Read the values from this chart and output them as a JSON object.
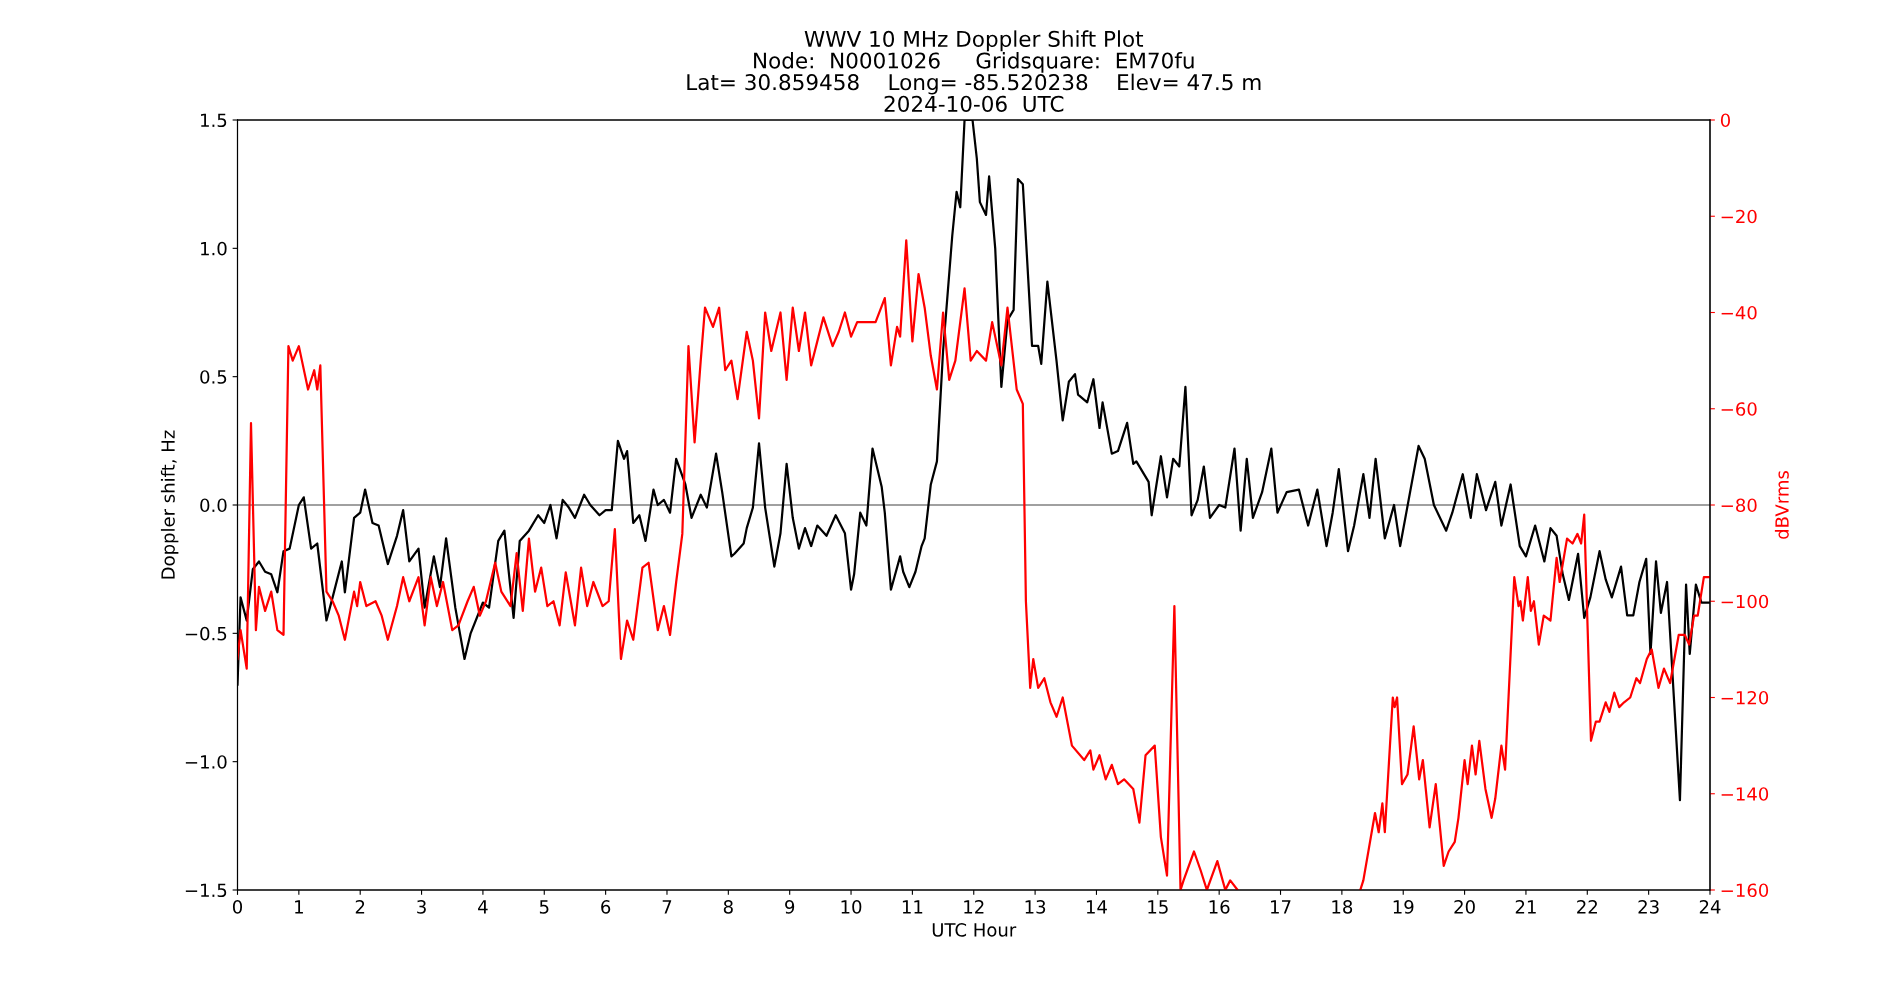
{
  "chart_data": {
    "type": "line",
    "title": "WWV 10 MHz Doppler Shift Plot\nNode:  N0001026     Gridsquare:  EM70fu\nLat= 30.859458    Long= -85.520238    Elev= 47.5 m\n2024-10-06  UTC",
    "xlabel": "UTC Hour",
    "ylabel": "Doppler shift, Hz",
    "y2label": "dBVrms",
    "xlim": [
      0,
      24
    ],
    "xticks": [
      0,
      1,
      2,
      3,
      4,
      5,
      6,
      7,
      8,
      9,
      10,
      11,
      12,
      13,
      14,
      15,
      16,
      17,
      18,
      19,
      20,
      21,
      22,
      23,
      24
    ],
    "ylim": [
      -1.5,
      1.5
    ],
    "yticks": [
      {
        "value": -1.5,
        "label": "−1.5"
      },
      {
        "value": -1.0,
        "label": "−1.0"
      },
      {
        "value": -0.5,
        "label": "−0.5"
      },
      {
        "value": 0,
        "label": "0.0"
      },
      {
        "value": 0.5,
        "label": "0.5"
      },
      {
        "value": 1.0,
        "label": "1.0"
      },
      {
        "value": 1.5,
        "label": "1.5"
      }
    ],
    "y2lim": [
      -160,
      0
    ],
    "y2ticks": [
      {
        "value": -160,
        "label": "−160"
      },
      {
        "value": -140,
        "label": "−140"
      },
      {
        "value": -120,
        "label": "−120"
      },
      {
        "value": -100,
        "label": "−100"
      },
      {
        "value": -80,
        "label": "−80"
      },
      {
        "value": -60,
        "label": "−60"
      },
      {
        "value": -40,
        "label": "−40"
      },
      {
        "value": -20,
        "label": "−20"
      },
      0
    ],
    "grid": false,
    "legend": false,
    "ref_lines": [
      {
        "axis": "y",
        "value": 0,
        "color": "#808080"
      }
    ],
    "series": [
      {
        "color": "#000000",
        "axis": "y",
        "x": [
          0.0,
          0.05,
          0.15,
          0.25,
          0.35,
          0.45,
          0.55,
          0.65,
          0.75,
          0.85,
          1.0,
          1.08,
          1.2,
          1.3,
          1.45,
          1.55,
          1.7,
          1.75,
          1.9,
          2.0,
          2.08,
          2.2,
          2.3,
          2.45,
          2.6,
          2.7,
          2.8,
          2.95,
          3.05,
          3.2,
          3.3,
          3.4,
          3.55,
          3.7,
          3.8,
          4.0,
          4.1,
          4.25,
          4.35,
          4.5,
          4.6,
          4.75,
          4.9,
          5.0,
          5.1,
          5.2,
          5.3,
          5.4,
          5.5,
          5.65,
          5.75,
          5.9,
          6.0,
          6.1,
          6.2,
          6.3,
          6.35,
          6.45,
          6.55,
          6.65,
          6.78,
          6.85,
          6.95,
          7.05,
          7.15,
          7.3,
          7.4,
          7.55,
          7.65,
          7.8,
          7.9,
          8.05,
          8.1,
          8.25,
          8.3,
          8.4,
          8.5,
          8.6,
          8.75,
          8.85,
          8.95,
          9.05,
          9.15,
          9.25,
          9.35,
          9.45,
          9.6,
          9.75,
          9.9,
          10.0,
          10.05,
          10.15,
          10.25,
          10.35,
          10.5,
          10.55,
          10.65,
          10.8,
          10.85,
          10.95,
          11.05,
          11.15,
          11.2,
          11.3,
          11.4,
          11.5,
          11.65,
          11.72,
          11.78,
          11.85,
          11.98,
          12.05,
          12.1,
          12.2,
          12.25,
          12.35,
          12.45,
          12.55,
          12.65,
          12.72,
          12.8,
          12.95,
          13.05,
          13.1,
          13.2,
          13.35,
          13.45,
          13.55,
          13.65,
          13.7,
          13.85,
          13.95,
          14.05,
          14.1,
          14.25,
          14.35,
          14.5,
          14.6,
          14.65,
          14.85,
          14.9,
          15.05,
          15.15,
          15.25,
          15.35,
          15.45,
          15.55,
          15.65,
          15.75,
          15.85,
          16.0,
          16.1,
          16.25,
          16.35,
          16.45,
          16.55,
          16.7,
          16.85,
          16.95,
          17.1,
          17.3,
          17.45,
          17.6,
          17.75,
          17.85,
          17.95,
          18.1,
          18.2,
          18.35,
          18.45,
          18.55,
          18.7,
          18.85,
          18.95,
          19.25,
          19.35,
          19.5,
          19.7,
          19.8,
          19.97,
          20.1,
          20.2,
          20.35,
          20.5,
          20.6,
          20.75,
          20.9,
          21.0,
          21.15,
          21.3,
          21.4,
          21.5,
          21.6,
          21.7,
          21.85,
          21.95,
          22.05,
          22.2,
          22.3,
          22.4,
          22.55,
          22.65,
          22.75,
          22.85,
          22.96,
          23.03,
          23.12,
          23.2,
          23.3,
          23.51,
          23.61,
          23.67,
          23.77,
          23.86,
          24.0
        ],
        "values": [
          -0.7,
          -0.36,
          -0.45,
          -0.25,
          -0.22,
          -0.26,
          -0.27,
          -0.34,
          -0.18,
          -0.17,
          0.0,
          0.03,
          -0.17,
          -0.15,
          -0.45,
          -0.36,
          -0.22,
          -0.34,
          -0.05,
          -0.03,
          0.06,
          -0.07,
          -0.08,
          -0.23,
          -0.12,
          -0.02,
          -0.22,
          -0.17,
          -0.4,
          -0.2,
          -0.32,
          -0.13,
          -0.4,
          -0.6,
          -0.5,
          -0.38,
          -0.4,
          -0.14,
          -0.1,
          -0.44,
          -0.14,
          -0.1,
          -0.04,
          -0.07,
          0.0,
          -0.13,
          0.02,
          -0.01,
          -0.05,
          0.04,
          0.0,
          -0.04,
          -0.02,
          -0.02,
          0.25,
          0.18,
          0.21,
          -0.07,
          -0.04,
          -0.14,
          0.06,
          0.0,
          0.02,
          -0.03,
          0.18,
          0.08,
          -0.05,
          0.04,
          -0.01,
          0.2,
          0.05,
          -0.2,
          -0.19,
          -0.15,
          -0.09,
          -0.01,
          0.24,
          -0.01,
          -0.24,
          -0.11,
          0.16,
          -0.05,
          -0.17,
          -0.09,
          -0.16,
          -0.08,
          -0.12,
          -0.04,
          -0.11,
          -0.33,
          -0.27,
          -0.03,
          -0.08,
          0.22,
          0.07,
          -0.03,
          -0.33,
          -0.2,
          -0.26,
          -0.32,
          -0.26,
          -0.16,
          -0.13,
          0.08,
          0.17,
          0.6,
          1.05,
          1.22,
          1.16,
          1.5,
          1.5,
          1.35,
          1.18,
          1.13,
          1.28,
          1.0,
          0.46,
          0.72,
          0.76,
          1.27,
          1.25,
          0.62,
          0.62,
          0.55,
          0.87,
          0.56,
          0.33,
          0.48,
          0.51,
          0.43,
          0.4,
          0.49,
          0.3,
          0.4,
          0.2,
          0.21,
          0.32,
          0.16,
          0.17,
          0.09,
          -0.04,
          0.19,
          0.03,
          0.18,
          0.15,
          0.46,
          -0.04,
          0.02,
          0.15,
          -0.05,
          0.0,
          -0.01,
          0.22,
          -0.1,
          0.18,
          -0.05,
          0.05,
          0.22,
          -0.03,
          0.05,
          0.06,
          -0.08,
          0.06,
          -0.16,
          -0.03,
          0.14,
          -0.18,
          -0.08,
          0.12,
          -0.05,
          0.18,
          -0.13,
          0.0,
          -0.16,
          0.23,
          0.18,
          0.0,
          -0.1,
          -0.03,
          0.12,
          -0.05,
          0.12,
          -0.02,
          0.09,
          -0.08,
          0.08,
          -0.16,
          -0.2,
          -0.08,
          -0.22,
          -0.09,
          -0.12,
          -0.27,
          -0.37,
          -0.19,
          -0.44,
          -0.36,
          -0.18,
          -0.29,
          -0.36,
          -0.24,
          -0.43,
          -0.43,
          -0.3,
          -0.21,
          -0.58,
          -0.22,
          -0.42,
          -0.3,
          -1.15,
          -0.31,
          -0.58,
          -0.31,
          -0.38,
          -0.38
        ]
      },
      {
        "color": "#ff0000",
        "axis": "y2",
        "x": [
          0.0,
          0.05,
          0.15,
          0.22,
          0.3,
          0.35,
          0.45,
          0.55,
          0.65,
          0.75,
          0.83,
          0.9,
          1.0,
          1.05,
          1.15,
          1.25,
          1.3,
          1.35,
          1.45,
          1.55,
          1.65,
          1.75,
          1.9,
          1.95,
          2.0,
          2.1,
          2.25,
          2.35,
          2.45,
          2.6,
          2.7,
          2.8,
          2.95,
          3.05,
          3.15,
          3.25,
          3.35,
          3.5,
          3.6,
          3.75,
          3.85,
          3.95,
          4.05,
          4.2,
          4.3,
          4.45,
          4.55,
          4.65,
          4.75,
          4.85,
          4.95,
          5.05,
          5.15,
          5.25,
          5.35,
          5.5,
          5.6,
          5.7,
          5.8,
          5.95,
          6.05,
          6.15,
          6.25,
          6.35,
          6.45,
          6.6,
          6.7,
          6.85,
          6.95,
          7.05,
          7.15,
          7.25,
          7.35,
          7.45,
          7.55,
          7.62,
          7.75,
          7.85,
          7.95,
          8.05,
          8.15,
          8.3,
          8.4,
          8.5,
          8.6,
          8.7,
          8.85,
          8.95,
          9.05,
          9.15,
          9.25,
          9.35,
          9.45,
          9.55,
          9.7,
          9.8,
          9.9,
          10.0,
          10.1,
          10.25,
          10.4,
          10.55,
          10.65,
          10.75,
          10.8,
          10.9,
          11.0,
          11.1,
          11.2,
          11.3,
          11.4,
          11.5,
          11.6,
          11.7,
          11.85,
          11.95,
          12.05,
          12.2,
          12.3,
          12.45,
          12.55,
          12.7,
          12.8,
          12.85,
          12.92,
          12.97,
          13.05,
          13.15,
          13.25,
          13.35,
          13.45,
          13.6,
          13.8,
          13.9,
          13.95,
          14.05,
          14.15,
          14.25,
          14.35,
          14.45,
          14.6,
          14.7,
          14.8,
          14.95,
          15.05,
          15.15,
          15.27,
          15.37,
          15.42,
          15.59,
          15.7,
          15.8,
          15.97,
          16.1,
          16.18,
          16.3,
          17.3,
          18.3,
          18.35,
          18.54,
          18.6,
          18.66,
          18.7,
          18.83,
          18.86,
          18.9,
          18.98,
          19.07,
          19.17,
          19.26,
          19.32,
          19.43,
          19.53,
          19.66,
          19.74,
          19.84,
          19.9,
          20.0,
          20.05,
          20.12,
          20.18,
          20.24,
          20.34,
          20.44,
          20.5,
          20.6,
          20.66,
          20.81,
          20.88,
          20.91,
          20.95,
          21.03,
          21.08,
          21.13,
          21.21,
          21.29,
          21.4,
          21.5,
          21.55,
          21.67,
          21.76,
          21.84,
          21.9,
          21.95,
          22.06,
          22.14,
          22.2,
          22.3,
          22.36,
          22.44,
          22.52,
          22.6,
          22.7,
          22.8,
          22.86,
          22.97,
          23.05,
          23.16,
          23.25,
          23.35,
          23.49,
          23.59,
          23.66,
          23.74,
          23.8,
          23.9,
          24.0
        ],
        "values": [
          -112,
          -106,
          -114,
          -63,
          -106,
          -97,
          -102,
          -98,
          -106,
          -107,
          -47,
          -50,
          -47,
          -50,
          -56,
          -52,
          -56,
          -51,
          -98,
          -100,
          -103,
          -108,
          -98,
          -101,
          -96,
          -101,
          -100,
          -103,
          -108,
          -101,
          -95,
          -100,
          -95,
          -105,
          -95,
          -101,
          -96,
          -106,
          -105,
          -100,
          -97,
          -103,
          -100,
          -92,
          -98,
          -101,
          -90,
          -102,
          -87,
          -98,
          -93,
          -101,
          -100,
          -105,
          -94,
          -105,
          -93,
          -101,
          -96,
          -101,
          -100,
          -85,
          -112,
          -104,
          -108,
          -93,
          -92,
          -106,
          -101,
          -107,
          -96,
          -86,
          -47,
          -67,
          -50,
          -39,
          -43,
          -39,
          -52,
          -50,
          -58,
          -44,
          -50,
          -62,
          -40,
          -48,
          -40,
          -54,
          -39,
          -48,
          -40,
          -51,
          -46,
          -41,
          -47,
          -44,
          -40,
          -45,
          -42,
          -42,
          -42,
          -37,
          -51,
          -43,
          -45,
          -25,
          -46,
          -32,
          -39,
          -49,
          -56,
          -40,
          -54,
          -50,
          -35,
          -50,
          -48,
          -50,
          -42,
          -51,
          -39,
          -56,
          -59,
          -100,
          -118,
          -112,
          -118,
          -116,
          -121,
          -124,
          -120,
          -130,
          -133,
          -131,
          -135,
          -132,
          -137,
          -134,
          -138,
          -137,
          -139,
          -146,
          -132,
          -130,
          -149,
          -157,
          -101,
          -160,
          -158,
          -152,
          -156,
          -160,
          -154,
          -160,
          -158,
          -160,
          null,
          -160,
          -158,
          -144,
          -148,
          -142,
          -148,
          -120,
          -122,
          -120,
          -138,
          -136,
          -126,
          -137,
          -133,
          -147,
          -138,
          -155,
          -152,
          -150,
          -145,
          -133,
          -138,
          -130,
          -136,
          -129,
          -139,
          -145,
          -141,
          -130,
          -135,
          -95,
          -101,
          -100,
          -104,
          -95,
          -102,
          -100,
          -109,
          -103,
          -104,
          -91,
          -96,
          -87,
          -88,
          -86,
          -88,
          -82,
          -129,
          -125,
          -125,
          -121,
          -123,
          -119,
          -122,
          -121,
          -120,
          -116,
          -117,
          -112,
          -110,
          -118,
          -114,
          -117,
          -107,
          -107,
          -109,
          -103,
          -103,
          -95,
          -95
        ]
      }
    ]
  }
}
